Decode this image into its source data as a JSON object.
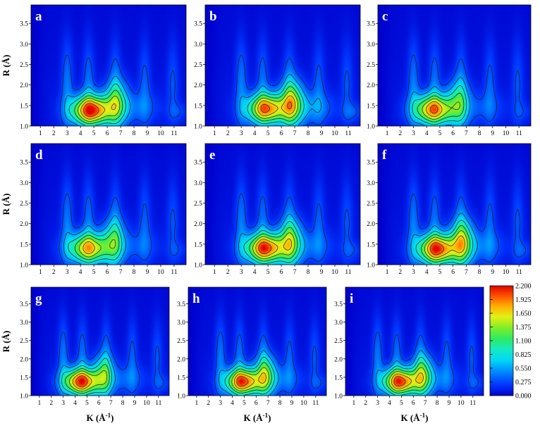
{
  "chart_data": {
    "type": "heatmap",
    "x_label_main": "K (Å",
    "x_label_sup": "-1",
    "x_label_end": ")",
    "y_label": "R (Å)",
    "x_ticks": [
      "1",
      "2",
      "3",
      "4",
      "5",
      "6",
      "7",
      "8",
      "9",
      "10",
      "11"
    ],
    "y_ticks": [
      "1.0",
      "1.5",
      "2.0",
      "2.5",
      "3.0",
      "3.5"
    ],
    "xlim": [
      0.3,
      11.9
    ],
    "ylim": [
      1.0,
      3.95
    ],
    "grid": false,
    "colorbar": {
      "min": 0.0,
      "max": 2.2,
      "ticks": [
        "2.200",
        "1.925",
        "1.650",
        "1.375",
        "1.100",
        "0.825",
        "0.550",
        "0.275",
        "0.000"
      ]
    },
    "contour_levels": [
      0.275,
      0.55,
      0.825,
      1.1,
      1.375,
      1.65,
      1.925
    ],
    "panels": [
      {
        "label": "a",
        "peak_k": 4.8,
        "peak_r": 1.38,
        "peak_value": 2.05,
        "ridge_value": 0.95,
        "tail_value": 0.55
      },
      {
        "label": "b",
        "peak_k": 4.9,
        "peak_r": 1.42,
        "peak_value": 1.82,
        "ridge_value": 1.25,
        "tail_value": 0.75
      },
      {
        "label": "c",
        "peak_k": 4.5,
        "peak_r": 1.4,
        "peak_value": 1.78,
        "ridge_value": 0.85,
        "tail_value": 0.45
      },
      {
        "label": "d",
        "peak_k": 4.6,
        "peak_r": 1.4,
        "peak_value": 1.62,
        "ridge_value": 0.85,
        "tail_value": 0.45
      },
      {
        "label": "e",
        "peak_k": 4.8,
        "peak_r": 1.4,
        "peak_value": 1.95,
        "ridge_value": 1.05,
        "tail_value": 0.55
      },
      {
        "label": "f",
        "peak_k": 4.8,
        "peak_r": 1.38,
        "peak_value": 1.98,
        "ridge_value": 1.2,
        "tail_value": 0.6
      },
      {
        "label": "g",
        "peak_k": 4.5,
        "peak_r": 1.38,
        "peak_value": 1.97,
        "ridge_value": 0.95,
        "tail_value": 0.55
      },
      {
        "label": "h",
        "peak_k": 4.9,
        "peak_r": 1.38,
        "peak_value": 1.95,
        "ridge_value": 1.05,
        "tail_value": 0.55
      },
      {
        "label": "i",
        "peak_k": 4.9,
        "peak_r": 1.38,
        "peak_value": 1.95,
        "ridge_value": 1.05,
        "tail_value": 0.55
      }
    ]
  }
}
